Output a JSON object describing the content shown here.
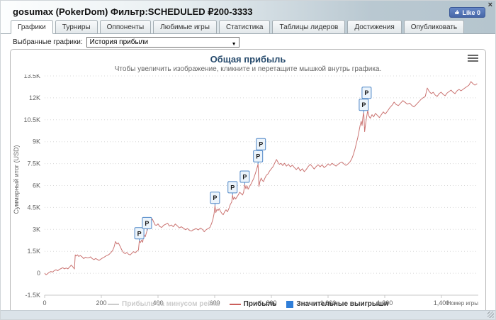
{
  "header": {
    "title": "gosumax (PokerDom) Фильтр:SCHEDULED ₽200-3333",
    "like_label": "Like 0",
    "close_label": "×"
  },
  "tabs": [
    {
      "label": "Графики",
      "active": true
    },
    {
      "label": "Турниры",
      "active": false
    },
    {
      "label": "Оппоненты",
      "active": false
    },
    {
      "label": "Любимые игры",
      "active": false
    },
    {
      "label": "Статистика",
      "active": false
    },
    {
      "label": "Таблицы лидеров",
      "active": false
    },
    {
      "label": "Достижения",
      "active": false
    },
    {
      "label": "Опубликовать",
      "active": false
    }
  ],
  "controls": {
    "select_label": "Выбранные графики:",
    "select_value": "История прибыли",
    "select_arrow": "▼"
  },
  "chart_data": {
    "type": "line",
    "title": "Общая прибыль",
    "subtitle": "Чтобы увеличить изображение, кликните и перетащите мышкой внутрь графика.",
    "xlabel": "Номер игры",
    "ylabel": "Суммарный итог (USD)",
    "xlim": [
      0,
      1530
    ],
    "ylim": [
      -1500,
      13500
    ],
    "grid": "dotted-horizontal",
    "colors": {
      "line": "#cb7472",
      "grid": "#d8d8d8",
      "axis": "#c8c8c8",
      "tick_label": "#606060",
      "flag_fill": "#ecf4fb",
      "flag_border": "#4f87c7",
      "flag_text": "#1a1a1a",
      "legend_disabled": "#cccccc",
      "legend_flag_swatch": "#2f7ed8"
    },
    "xticks": [
      {
        "v": 0,
        "label": "0"
      },
      {
        "v": 200,
        "label": "200"
      },
      {
        "v": 400,
        "label": "400"
      },
      {
        "v": 600,
        "label": "600"
      },
      {
        "v": 800,
        "label": "800"
      },
      {
        "v": 1000,
        "label": "1,000"
      },
      {
        "v": 1200,
        "label": "1,200"
      },
      {
        "v": 1400,
        "label": "1,400"
      }
    ],
    "yticks": [
      {
        "v": -1500,
        "label": "-1.5K"
      },
      {
        "v": 0,
        "label": "0"
      },
      {
        "v": 1500,
        "label": "1.5K"
      },
      {
        "v": 3000,
        "label": "3K"
      },
      {
        "v": 4500,
        "label": "4.5K"
      },
      {
        "v": 6000,
        "label": "6K"
      },
      {
        "v": 7500,
        "label": "7.5K"
      },
      {
        "v": 9000,
        "label": "9K"
      },
      {
        "v": 10500,
        "label": "10.5K"
      },
      {
        "v": 12000,
        "label": "12K"
      },
      {
        "v": 13500,
        "label": "13.5K"
      }
    ],
    "legend": [
      {
        "label": "Прибыль за минусом рейка",
        "type": "line",
        "disabled": true
      },
      {
        "label": "Прибыль",
        "type": "line",
        "disabled": false
      },
      {
        "label": "Значительные выигрыши",
        "type": "square",
        "disabled": false
      }
    ],
    "series": [
      {
        "name": "Прибыль",
        "color": "#cb7472",
        "points": [
          [
            0,
            0
          ],
          [
            5,
            -100
          ],
          [
            10,
            -40
          ],
          [
            16,
            60
          ],
          [
            22,
            120
          ],
          [
            28,
            80
          ],
          [
            34,
            180
          ],
          [
            40,
            240
          ],
          [
            46,
            170
          ],
          [
            52,
            260
          ],
          [
            58,
            320
          ],
          [
            64,
            380
          ],
          [
            70,
            300
          ],
          [
            76,
            360
          ],
          [
            82,
            300
          ],
          [
            88,
            420
          ],
          [
            94,
            560
          ],
          [
            98,
            470
          ],
          [
            102,
            380
          ],
          [
            105,
            290
          ],
          [
            108,
            1250
          ],
          [
            112,
            1180
          ],
          [
            116,
            1260
          ],
          [
            120,
            1150
          ],
          [
            126,
            1210
          ],
          [
            132,
            1120
          ],
          [
            138,
            1000
          ],
          [
            144,
            1100
          ],
          [
            150,
            1050
          ],
          [
            156,
            1060
          ],
          [
            162,
            1120
          ],
          [
            168,
            1000
          ],
          [
            174,
            930
          ],
          [
            180,
            1010
          ],
          [
            186,
            940
          ],
          [
            192,
            880
          ],
          [
            198,
            960
          ],
          [
            204,
            1040
          ],
          [
            210,
            1100
          ],
          [
            216,
            1180
          ],
          [
            222,
            1230
          ],
          [
            228,
            1300
          ],
          [
            234,
            1420
          ],
          [
            240,
            1560
          ],
          [
            245,
            1800
          ],
          [
            250,
            2170
          ],
          [
            255,
            2000
          ],
          [
            260,
            2080
          ],
          [
            266,
            1850
          ],
          [
            272,
            1600
          ],
          [
            278,
            1420
          ],
          [
            284,
            1340
          ],
          [
            290,
            1420
          ],
          [
            296,
            1300
          ],
          [
            302,
            1250
          ],
          [
            308,
            1380
          ],
          [
            314,
            1480
          ],
          [
            320,
            1400
          ],
          [
            326,
            1520
          ],
          [
            331,
            1590
          ],
          [
            334,
            2200
          ],
          [
            338,
            2100
          ],
          [
            342,
            2260
          ],
          [
            346,
            2120
          ],
          [
            350,
            2650
          ],
          [
            355,
            2500
          ],
          [
            358,
            2700
          ],
          [
            361,
            2900
          ],
          [
            365,
            3100
          ],
          [
            370,
            3300
          ],
          [
            375,
            3550
          ],
          [
            380,
            3710
          ],
          [
            385,
            3500
          ],
          [
            390,
            3300
          ],
          [
            395,
            3280
          ],
          [
            400,
            3380
          ],
          [
            406,
            3200
          ],
          [
            413,
            3130
          ],
          [
            420,
            3280
          ],
          [
            427,
            3350
          ],
          [
            434,
            3420
          ],
          [
            440,
            3230
          ],
          [
            447,
            3300
          ],
          [
            454,
            3180
          ],
          [
            461,
            3370
          ],
          [
            468,
            3250
          ],
          [
            475,
            3100
          ],
          [
            482,
            3180
          ],
          [
            490,
            3080
          ],
          [
            497,
            2980
          ],
          [
            504,
            3060
          ],
          [
            511,
            2930
          ],
          [
            518,
            2890
          ],
          [
            526,
            2980
          ],
          [
            534,
            3060
          ],
          [
            542,
            2960
          ],
          [
            550,
            3090
          ],
          [
            557,
            2990
          ],
          [
            563,
            2840
          ],
          [
            570,
            2980
          ],
          [
            577,
            3060
          ],
          [
            583,
            3130
          ],
          [
            589,
            3400
          ],
          [
            594,
            3710
          ],
          [
            598,
            4100
          ],
          [
            601,
            4630
          ],
          [
            604,
            4150
          ],
          [
            608,
            4380
          ],
          [
            612,
            4290
          ],
          [
            616,
            4420
          ],
          [
            620,
            4250
          ],
          [
            625,
            4100
          ],
          [
            630,
            4000
          ],
          [
            635,
            4210
          ],
          [
            640,
            4340
          ],
          [
            645,
            4200
          ],
          [
            650,
            4420
          ],
          [
            655,
            4700
          ],
          [
            660,
            4870
          ],
          [
            663,
            5350
          ],
          [
            666,
            5050
          ],
          [
            670,
            5210
          ],
          [
            674,
            5080
          ],
          [
            678,
            5210
          ],
          [
            683,
            5350
          ],
          [
            688,
            5540
          ],
          [
            693,
            5460
          ],
          [
            698,
            5350
          ],
          [
            702,
            5540
          ],
          [
            706,
            6070
          ],
          [
            710,
            5780
          ],
          [
            714,
            5980
          ],
          [
            718,
            5750
          ],
          [
            723,
            5930
          ],
          [
            728,
            6100
          ],
          [
            733,
            6300
          ],
          [
            738,
            6500
          ],
          [
            743,
            6800
          ],
          [
            748,
            7100
          ],
          [
            753,
            7470
          ],
          [
            756,
            5930
          ],
          [
            760,
            6300
          ],
          [
            764,
            6510
          ],
          [
            768,
            6350
          ],
          [
            772,
            6270
          ],
          [
            777,
            6500
          ],
          [
            782,
            6700
          ],
          [
            788,
            6800
          ],
          [
            794,
            7000
          ],
          [
            800,
            7150
          ],
          [
            806,
            7300
          ],
          [
            812,
            7550
          ],
          [
            818,
            7780
          ],
          [
            823,
            7600
          ],
          [
            828,
            7450
          ],
          [
            834,
            7520
          ],
          [
            840,
            7370
          ],
          [
            846,
            7520
          ],
          [
            853,
            7330
          ],
          [
            860,
            7450
          ],
          [
            867,
            7280
          ],
          [
            874,
            7400
          ],
          [
            881,
            7230
          ],
          [
            888,
            7090
          ],
          [
            895,
            7250
          ],
          [
            902,
            7000
          ],
          [
            909,
            7150
          ],
          [
            916,
            6950
          ],
          [
            923,
            7100
          ],
          [
            930,
            7300
          ],
          [
            937,
            7450
          ],
          [
            944,
            7300
          ],
          [
            951,
            7130
          ],
          [
            958,
            7300
          ],
          [
            965,
            7420
          ],
          [
            972,
            7280
          ],
          [
            979,
            7420
          ],
          [
            986,
            7230
          ],
          [
            993,
            7330
          ],
          [
            1000,
            7480
          ],
          [
            1007,
            7380
          ],
          [
            1014,
            7520
          ],
          [
            1021,
            7420
          ],
          [
            1028,
            7330
          ],
          [
            1035,
            7450
          ],
          [
            1042,
            7550
          ],
          [
            1049,
            7610
          ],
          [
            1056,
            7480
          ],
          [
            1063,
            7380
          ],
          [
            1070,
            7480
          ],
          [
            1077,
            7610
          ],
          [
            1083,
            7800
          ],
          [
            1089,
            8100
          ],
          [
            1095,
            8500
          ],
          [
            1100,
            8900
          ],
          [
            1105,
            9300
          ],
          [
            1109,
            9700
          ],
          [
            1113,
            10100
          ],
          [
            1117,
            10400
          ],
          [
            1120,
            10100
          ],
          [
            1123,
            10700
          ],
          [
            1126,
            10990
          ],
          [
            1129,
            9690
          ],
          [
            1133,
            10300
          ],
          [
            1137,
            10800
          ],
          [
            1140,
            11130
          ],
          [
            1144,
            10750
          ],
          [
            1149,
            10600
          ],
          [
            1155,
            10850
          ],
          [
            1161,
            10700
          ],
          [
            1167,
            10940
          ],
          [
            1174,
            10800
          ],
          [
            1181,
            10650
          ],
          [
            1188,
            10850
          ],
          [
            1195,
            11040
          ],
          [
            1202,
            10900
          ],
          [
            1210,
            11100
          ],
          [
            1218,
            11330
          ],
          [
            1226,
            11500
          ],
          [
            1233,
            11710
          ],
          [
            1240,
            11550
          ],
          [
            1248,
            11470
          ],
          [
            1256,
            11640
          ],
          [
            1264,
            11810
          ],
          [
            1272,
            11690
          ],
          [
            1280,
            11570
          ],
          [
            1288,
            11640
          ],
          [
            1296,
            11470
          ],
          [
            1303,
            11380
          ],
          [
            1311,
            11540
          ],
          [
            1319,
            11710
          ],
          [
            1327,
            11880
          ],
          [
            1335,
            12000
          ],
          [
            1343,
            12100
          ],
          [
            1350,
            12670
          ],
          [
            1357,
            12430
          ],
          [
            1364,
            12290
          ],
          [
            1371,
            12380
          ],
          [
            1378,
            12190
          ],
          [
            1385,
            12100
          ],
          [
            1392,
            12290
          ],
          [
            1399,
            12390
          ],
          [
            1406,
            12240
          ],
          [
            1413,
            12140
          ],
          [
            1420,
            12330
          ],
          [
            1427,
            12430
          ],
          [
            1434,
            12530
          ],
          [
            1441,
            12380
          ],
          [
            1448,
            12290
          ],
          [
            1455,
            12480
          ],
          [
            1462,
            12580
          ],
          [
            1469,
            12480
          ],
          [
            1476,
            12580
          ],
          [
            1483,
            12680
          ],
          [
            1490,
            12770
          ],
          [
            1497,
            12870
          ],
          [
            1504,
            13110
          ],
          [
            1511,
            12970
          ],
          [
            1518,
            12870
          ],
          [
            1526,
            12970
          ]
        ]
      }
    ],
    "flags": {
      "name": "Значительные выигрыши",
      "label": "P",
      "points": [
        {
          "x": 334,
          "y": 2200
        },
        {
          "x": 361,
          "y": 2900
        },
        {
          "x": 601,
          "y": 4630
        },
        {
          "x": 663,
          "y": 5350
        },
        {
          "x": 706,
          "y": 6070
        },
        {
          "x": 753,
          "y": 7470
        },
        {
          "x": 753,
          "y": 7470
        },
        {
          "x": 1126,
          "y": 10990
        },
        {
          "x": 1126,
          "y": 10990
        }
      ]
    }
  }
}
